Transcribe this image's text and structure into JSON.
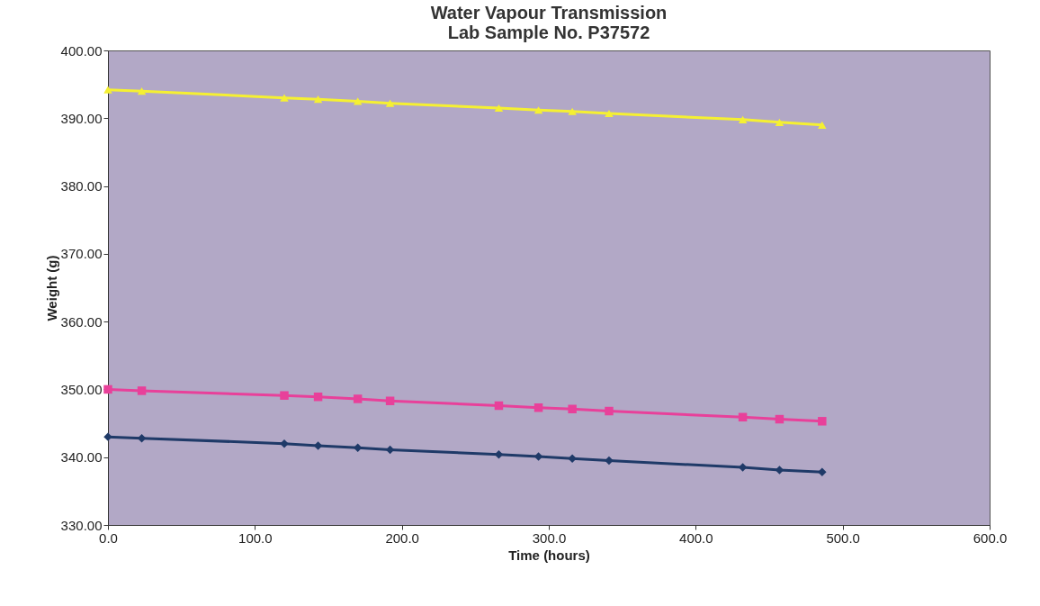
{
  "chart_data": {
    "type": "line",
    "title": "Water Vapour Transmission",
    "subtitle": "Lab Sample No. P37572",
    "xlabel": "Time (hours)",
    "ylabel": "Weight (g)",
    "x": [
      0,
      23,
      120,
      143,
      170,
      192,
      266,
      293,
      316,
      341,
      432,
      457,
      486
    ],
    "series": [
      {
        "color": "#1f3a68",
        "marker": "diamond",
        "values": [
          343.0,
          342.8,
          342.0,
          341.7,
          341.4,
          341.1,
          340.4,
          340.1,
          339.8,
          339.5,
          338.5,
          338.1,
          337.8
        ]
      },
      {
        "color": "#e8409a",
        "marker": "square",
        "values": [
          350.0,
          349.8,
          349.1,
          348.9,
          348.6,
          348.3,
          347.6,
          347.3,
          347.1,
          346.8,
          345.9,
          345.6,
          345.3
        ]
      },
      {
        "color": "#f5f032",
        "marker": "triangle",
        "values": [
          394.2,
          394.0,
          393.0,
          392.8,
          392.5,
          392.2,
          391.5,
          391.2,
          391.0,
          390.7,
          389.8,
          389.4,
          389.0
        ]
      }
    ],
    "xlim": [
      0,
      600
    ],
    "xticks": [
      {
        "value": 0,
        "label": "0.0"
      },
      {
        "value": 100,
        "label": "100.0"
      },
      {
        "value": 200,
        "label": "200.0"
      },
      {
        "value": 300,
        "label": "300.0"
      },
      {
        "value": 400,
        "label": "400.0"
      },
      {
        "value": 500,
        "label": "500.0"
      },
      {
        "value": 600,
        "label": "600.0"
      }
    ],
    "ylim": [
      330,
      400
    ],
    "yticks": [
      {
        "value": 330,
        "label": "330.00"
      },
      {
        "value": 340,
        "label": "340.00"
      },
      {
        "value": 350,
        "label": "350.00"
      },
      {
        "value": 360,
        "label": "360.00"
      },
      {
        "value": 370,
        "label": "370.00"
      },
      {
        "value": 380,
        "label": "380.00"
      },
      {
        "value": 390,
        "label": "390.00"
      },
      {
        "value": 400,
        "label": "400.00"
      }
    ],
    "grid": false
  }
}
